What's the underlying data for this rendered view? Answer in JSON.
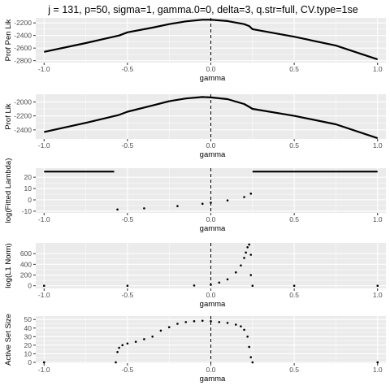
{
  "title": "j = 131, p=50, sigma=1, gamma.0=0, delta=3, q.str=full, CV.type=1se",
  "colors": {
    "panel_bg": "#ebebeb",
    "grid": "#ffffff",
    "data": "#000000",
    "vline": "#000000"
  },
  "chart_data": [
    {
      "type": "line",
      "xlabel": "gamma",
      "ylabel": "Prof Pen Lik",
      "xlim": [
        -1.05,
        1.05
      ],
      "ylim": [
        -2830,
        -2120
      ],
      "xticks": [
        -1.0,
        -0.5,
        0.0,
        0.5,
        1.0
      ],
      "xtick_labels": [
        "-1.0",
        "-0.5",
        "0.0",
        "0.5",
        "1.0"
      ],
      "yticks": [
        -2200,
        -2400,
        -2600,
        -2800
      ],
      "ytick_labels": [
        "-2200",
        "-2400",
        "-2600",
        "-2800"
      ],
      "vline_x": 0,
      "series": [
        {
          "x": [
            -1.0,
            -0.75,
            -0.55,
            -0.5,
            -0.35,
            -0.25,
            -0.15,
            -0.05,
            0.0,
            0.1,
            0.2,
            0.23,
            0.25,
            0.5,
            0.75,
            1.0
          ],
          "y": [
            -2660,
            -2520,
            -2400,
            -2350,
            -2275,
            -2220,
            -2175,
            -2150,
            -2150,
            -2170,
            -2220,
            -2250,
            -2300,
            -2420,
            -2560,
            -2780
          ]
        }
      ]
    },
    {
      "type": "line",
      "xlabel": "gamma",
      "ylabel": "Prof Lik",
      "xlim": [
        -1.05,
        1.05
      ],
      "ylim": [
        -2530,
        -1890
      ],
      "xticks": [
        -1.0,
        -0.5,
        0.0,
        0.5,
        1.0
      ],
      "xtick_labels": [
        "-1.0",
        "-0.5",
        "0.0",
        "0.5",
        "1.0"
      ],
      "yticks": [
        -2000,
        -2200,
        -2400
      ],
      "ytick_labels": [
        "-2000",
        "-2200",
        "-2400"
      ],
      "vline_x": 0,
      "series": [
        {
          "x": [
            -1.0,
            -0.75,
            -0.55,
            -0.5,
            -0.35,
            -0.25,
            -0.15,
            -0.05,
            0.0,
            0.1,
            0.2,
            0.23,
            0.25,
            0.5,
            0.75,
            1.0
          ],
          "y": [
            -2430,
            -2300,
            -2185,
            -2140,
            -2050,
            -1990,
            -1950,
            -1930,
            -1935,
            -1960,
            -2030,
            -2070,
            -2100,
            -2200,
            -2320,
            -2520
          ]
        }
      ]
    },
    {
      "type": "scatter",
      "xlabel": "gamma",
      "ylabel": "log(Fitted Lambda)",
      "xlim": [
        -1.05,
        1.05
      ],
      "ylim": [
        -11.5,
        28
      ],
      "xticks": [
        -1.0,
        -0.5,
        0.0,
        0.5,
        1.0
      ],
      "xtick_labels": [
        "-1.0",
        "-0.5",
        "0.0",
        "0.5",
        "1.0"
      ],
      "yticks": [
        20,
        10,
        0,
        -10
      ],
      "ytick_labels": [
        "20",
        "10",
        "0",
        "-10"
      ],
      "vline_x": 0,
      "series": [
        {
          "x": [
            -1.0,
            -0.58
          ],
          "y": [
            25,
            25
          ]
        },
        {
          "x": [
            -0.56,
            -0.4,
            -0.2,
            -0.05,
            0.0,
            0.1,
            0.2,
            0.24
          ],
          "y": [
            -8.5,
            -7.5,
            -5.5,
            -3.5,
            -2.5,
            -0.5,
            2.5,
            5.5
          ]
        },
        {
          "x": [
            0.25,
            1.0
          ],
          "y": [
            25,
            25
          ]
        }
      ]
    },
    {
      "type": "scatter",
      "xlabel": "gamma",
      "ylabel": "log(L1 Norm)",
      "xlim": [
        -1.05,
        1.05
      ],
      "ylim": [
        -50,
        800
      ],
      "xticks": [
        -1.0,
        -0.5,
        0.0,
        0.5,
        1.0
      ],
      "xtick_labels": [
        "-1.0",
        "-0.5",
        "0.0",
        "0.5",
        "1.0"
      ],
      "yticks": [
        600,
        400,
        200,
        0
      ],
      "ytick_labels": [
        "600",
        "400",
        "200",
        "0"
      ],
      "vline_x": 0,
      "series": [
        {
          "x": [
            -1.0,
            -0.5,
            -0.1,
            0.0,
            0.05,
            0.1,
            0.15,
            0.18,
            0.2,
            0.21,
            0.22,
            0.23,
            0.24,
            0.24,
            0.25,
            0.5,
            1.0
          ],
          "y": [
            0,
            0,
            5,
            20,
            60,
            120,
            250,
            380,
            520,
            620,
            720,
            770,
            580,
            200,
            0,
            0,
            0
          ]
        }
      ]
    },
    {
      "type": "scatter",
      "xlabel": "gamma",
      "ylabel": "Active Set Size",
      "xlim": [
        -1.05,
        1.05
      ],
      "ylim": [
        -1,
        54
      ],
      "xticks": [
        -1.0,
        -0.5,
        0.0,
        0.5,
        1.0
      ],
      "xtick_labels": [
        "-1.0",
        "-0.5",
        "0.0",
        "0.5",
        "1.0"
      ],
      "yticks": [
        50,
        40,
        30,
        20,
        10,
        0
      ],
      "ytick_labels": [
        "50",
        "40",
        "30",
        "20",
        "10",
        "0"
      ],
      "vline_x": 0,
      "series": [
        {
          "x": [
            -1.0,
            -0.57,
            -0.56,
            -0.55,
            -0.53,
            -0.5,
            -0.45,
            -0.4,
            -0.35,
            -0.3,
            -0.25,
            -0.2,
            -0.15,
            -0.1,
            -0.05,
            0.0,
            0.05,
            0.1,
            0.15,
            0.18,
            0.2,
            0.22,
            0.23,
            0.24,
            0.25,
            1.0
          ],
          "y": [
            0,
            0,
            12,
            17,
            20,
            22,
            24,
            27,
            30,
            37,
            41,
            45,
            47,
            48,
            48.5,
            48,
            47,
            46,
            44,
            42,
            38,
            30,
            18,
            6,
            0,
            0
          ]
        }
      ]
    }
  ]
}
